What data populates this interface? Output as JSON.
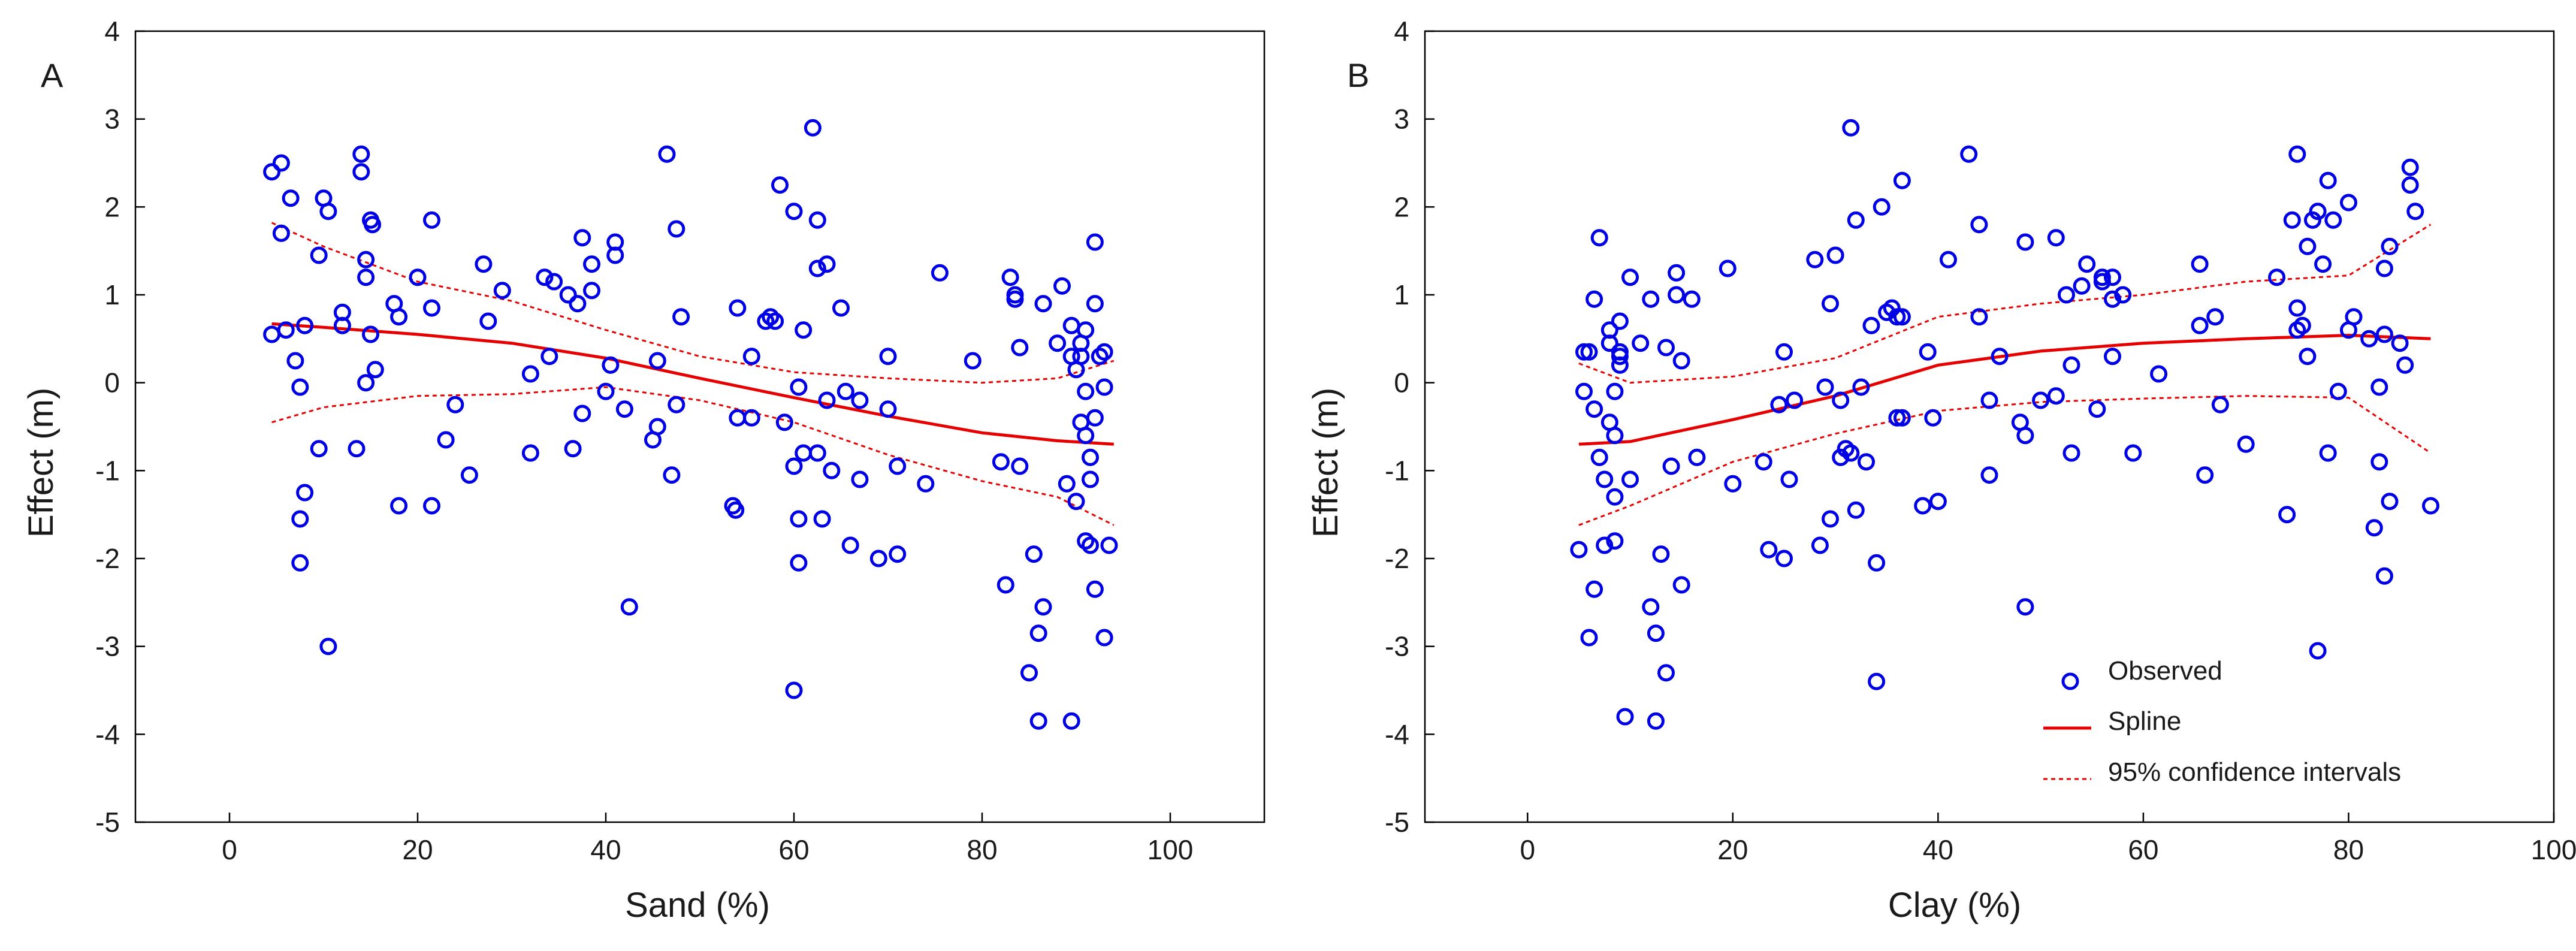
{
  "colors": {
    "points": "#0000e6",
    "spline": "#e60000",
    "ci": "#e60000",
    "axes": "#000000"
  },
  "legend": {
    "observed": "Observed",
    "spline": "Spline",
    "ci": "95% confidence intervals"
  },
  "chart_data": [
    {
      "panel": "A",
      "type": "scatter",
      "xlabel": "Sand (%)",
      "ylabel": "Effect (m)",
      "xlim": [
        -10,
        110
      ],
      "ylim": [
        -5,
        4
      ],
      "xticks": [
        0,
        20,
        40,
        60,
        80,
        100
      ],
      "yticks": [
        4,
        3,
        2,
        1,
        0,
        -1,
        -2,
        -3,
        -4,
        -5
      ],
      "points": [
        [
          4.5,
          2.4
        ],
        [
          5.5,
          2.5
        ],
        [
          6.5,
          2.1
        ],
        [
          5.5,
          1.7
        ],
        [
          4.5,
          0.55
        ],
        [
          6,
          0.6
        ],
        [
          7,
          0.25
        ],
        [
          7.5,
          -0.05
        ],
        [
          8,
          0.65
        ],
        [
          8,
          -1.25
        ],
        [
          7.5,
          -1.55
        ],
        [
          7.5,
          -2.05
        ],
        [
          9.5,
          1.45
        ],
        [
          10,
          2.1
        ],
        [
          10.5,
          1.95
        ],
        [
          9.5,
          -0.75
        ],
        [
          10.5,
          -3.0
        ],
        [
          12,
          0.8
        ],
        [
          12,
          0.65
        ],
        [
          13.5,
          -0.75
        ],
        [
          14,
          2.6
        ],
        [
          14,
          2.4
        ],
        [
          14.5,
          1.4
        ],
        [
          14.5,
          1.2
        ],
        [
          14.5,
          0.0
        ],
        [
          15,
          0.55
        ],
        [
          15,
          1.85
        ],
        [
          15.2,
          1.8
        ],
        [
          15.5,
          0.15
        ],
        [
          17.5,
          0.9
        ],
        [
          18,
          0.75
        ],
        [
          18,
          -1.4
        ],
        [
          20,
          1.2
        ],
        [
          21.5,
          1.85
        ],
        [
          21.5,
          0.85
        ],
        [
          21.5,
          -1.4
        ],
        [
          23,
          -0.65
        ],
        [
          24,
          -0.25
        ],
        [
          25.5,
          -1.05
        ],
        [
          27,
          1.35
        ],
        [
          27.5,
          0.7
        ],
        [
          29,
          1.05
        ],
        [
          32,
          0.1
        ],
        [
          32,
          -0.8
        ],
        [
          33.5,
          1.2
        ],
        [
          34,
          0.3
        ],
        [
          34.5,
          1.15
        ],
        [
          36,
          1.0
        ],
        [
          36.5,
          -0.75
        ],
        [
          37,
          0.9
        ],
        [
          37.5,
          -0.35
        ],
        [
          37.5,
          1.65
        ],
        [
          38.5,
          1.35
        ],
        [
          38.5,
          1.05
        ],
        [
          40,
          -0.1
        ],
        [
          40.5,
          0.2
        ],
        [
          41,
          1.6
        ],
        [
          41,
          1.45
        ],
        [
          42,
          -0.3
        ],
        [
          42.5,
          -2.55
        ],
        [
          45,
          -0.65
        ],
        [
          45.5,
          -0.5
        ],
        [
          45.5,
          0.25
        ],
        [
          46.5,
          2.6
        ],
        [
          47,
          -1.05
        ],
        [
          47.5,
          1.75
        ],
        [
          47.5,
          -0.25
        ],
        [
          48,
          0.75
        ],
        [
          53.5,
          -1.4
        ],
        [
          53.8,
          -1.45
        ],
        [
          54,
          0.85
        ],
        [
          54,
          -0.4
        ],
        [
          55.5,
          0.3
        ],
        [
          55.5,
          -0.4
        ],
        [
          57,
          0.7
        ],
        [
          57.5,
          0.75
        ],
        [
          58,
          0.7
        ],
        [
          58.5,
          2.25
        ],
        [
          59,
          -0.45
        ],
        [
          60,
          1.95
        ],
        [
          60,
          -0.95
        ],
        [
          60.5,
          -0.05
        ],
        [
          60.5,
          -1.55
        ],
        [
          60.5,
          -2.05
        ],
        [
          60,
          -3.5
        ],
        [
          61,
          0.6
        ],
        [
          61,
          -0.8
        ],
        [
          62,
          2.9
        ],
        [
          62.5,
          1.85
        ],
        [
          62.5,
          1.3
        ],
        [
          62.5,
          -0.8
        ],
        [
          63,
          -1.55
        ],
        [
          63.5,
          1.35
        ],
        [
          63.5,
          -0.2
        ],
        [
          64,
          -1.0
        ],
        [
          65,
          0.85
        ],
        [
          65.5,
          -0.1
        ],
        [
          66,
          -1.85
        ],
        [
          67,
          -0.2
        ],
        [
          67,
          -1.1
        ],
        [
          69,
          -2.0
        ],
        [
          70,
          0.3
        ],
        [
          70,
          -0.3
        ],
        [
          71,
          -0.95
        ],
        [
          71,
          -1.95
        ],
        [
          74,
          -1.15
        ],
        [
          75.5,
          1.25
        ],
        [
          79,
          0.25
        ],
        [
          82,
          -0.9
        ],
        [
          82.5,
          -2.3
        ],
        [
          83,
          1.2
        ],
        [
          83.5,
          0.95
        ],
        [
          83.5,
          1.0
        ],
        [
          84,
          0.4
        ],
        [
          84,
          -0.95
        ],
        [
          85,
          -3.3
        ],
        [
          85.5,
          -1.95
        ],
        [
          86,
          -2.85
        ],
        [
          86,
          -3.85
        ],
        [
          86.5,
          0.9
        ],
        [
          86.5,
          -2.55
        ],
        [
          88,
          0.45
        ],
        [
          88.5,
          1.1
        ],
        [
          89,
          -1.15
        ],
        [
          89.5,
          0.65
        ],
        [
          89.5,
          0.3
        ],
        [
          89.5,
          -3.85
        ],
        [
          90,
          0.15
        ],
        [
          90,
          -1.35
        ],
        [
          90.5,
          0.3
        ],
        [
          90.5,
          0.45
        ],
        [
          90.5,
          -0.45
        ],
        [
          91,
          -0.6
        ],
        [
          91,
          -1.8
        ],
        [
          91,
          0.6
        ],
        [
          91,
          -0.1
        ],
        [
          91.5,
          -0.85
        ],
        [
          91.5,
          -1.1
        ],
        [
          91.5,
          -1.85
        ],
        [
          92,
          1.6
        ],
        [
          92,
          0.9
        ],
        [
          92,
          -0.4
        ],
        [
          92,
          -2.35
        ],
        [
          92.5,
          0.3
        ],
        [
          93,
          0.35
        ],
        [
          93,
          -0.05
        ],
        [
          93,
          -2.9
        ],
        [
          93.5,
          -1.85
        ]
      ],
      "spline": [
        [
          4.5,
          0.67
        ],
        [
          10,
          0.63
        ],
        [
          20,
          0.55
        ],
        [
          30,
          0.45
        ],
        [
          40,
          0.28
        ],
        [
          50,
          0.05
        ],
        [
          60,
          -0.17
        ],
        [
          70,
          -0.38
        ],
        [
          80,
          -0.57
        ],
        [
          88,
          -0.66
        ],
        [
          94,
          -0.7
        ]
      ],
      "ci_upper": [
        [
          4.5,
          1.82
        ],
        [
          10,
          1.55
        ],
        [
          20,
          1.15
        ],
        [
          30,
          0.93
        ],
        [
          40,
          0.6
        ],
        [
          50,
          0.3
        ],
        [
          60,
          0.12
        ],
        [
          70,
          0.05
        ],
        [
          80,
          0.0
        ],
        [
          88,
          0.05
        ],
        [
          94,
          0.25
        ]
      ],
      "ci_lower": [
        [
          4.5,
          -0.45
        ],
        [
          10,
          -0.28
        ],
        [
          20,
          -0.15
        ],
        [
          30,
          -0.13
        ],
        [
          40,
          -0.05
        ],
        [
          50,
          -0.2
        ],
        [
          60,
          -0.45
        ],
        [
          70,
          -0.82
        ],
        [
          80,
          -1.12
        ],
        [
          88,
          -1.3
        ],
        [
          94,
          -1.62
        ]
      ]
    },
    {
      "panel": "B",
      "type": "scatter",
      "xlabel": "Clay (%)",
      "ylabel": "Effect (m)",
      "xlim": [
        -10,
        100
      ],
      "ylim": [
        -5,
        4
      ],
      "xticks": [
        0,
        20,
        40,
        60,
        80,
        100
      ],
      "yticks": [
        4,
        3,
        2,
        1,
        0,
        -1,
        -2,
        -3,
        -4,
        -5
      ],
      "points": [
        [
          5,
          -1.9
        ],
        [
          5.5,
          0.35
        ],
        [
          5.5,
          -0.1
        ],
        [
          6,
          -2.9
        ],
        [
          6,
          0.35
        ],
        [
          6.5,
          0.95
        ],
        [
          6.5,
          -2.35
        ],
        [
          6.5,
          -0.3
        ],
        [
          7,
          1.65
        ],
        [
          7,
          -0.85
        ],
        [
          7.5,
          -1.85
        ],
        [
          7.5,
          -1.1
        ],
        [
          8,
          0.6
        ],
        [
          8,
          -0.45
        ],
        [
          8,
          0.45
        ],
        [
          8.5,
          -0.1
        ],
        [
          8.5,
          -0.6
        ],
        [
          8.5,
          -1.8
        ],
        [
          8.5,
          -1.3
        ],
        [
          9,
          0.35
        ],
        [
          9,
          0.3
        ],
        [
          9,
          0.2
        ],
        [
          9,
          0.7
        ],
        [
          9.5,
          -3.8
        ],
        [
          10,
          1.2
        ],
        [
          10,
          -1.1
        ],
        [
          11,
          0.45
        ],
        [
          12,
          -2.55
        ],
        [
          12,
          0.95
        ],
        [
          12.5,
          -2.85
        ],
        [
          12.5,
          -3.85
        ],
        [
          13,
          -1.95
        ],
        [
          13.5,
          -3.3
        ],
        [
          13.5,
          0.4
        ],
        [
          14,
          -0.95
        ],
        [
          14.5,
          1.0
        ],
        [
          14.5,
          1.25
        ],
        [
          15,
          0.25
        ],
        [
          15,
          -2.3
        ],
        [
          16,
          0.95
        ],
        [
          16.5,
          -0.85
        ],
        [
          19.5,
          1.3
        ],
        [
          20,
          -1.15
        ],
        [
          23,
          -0.9
        ],
        [
          23.5,
          -1.9
        ],
        [
          24.5,
          -0.25
        ],
        [
          25,
          0.35
        ],
        [
          25,
          -2.0
        ],
        [
          25.5,
          -1.1
        ],
        [
          26,
          -0.2
        ],
        [
          28,
          1.4
        ],
        [
          28.5,
          -1.85
        ],
        [
          29,
          -0.05
        ],
        [
          29.5,
          0.9
        ],
        [
          29.5,
          -1.55
        ],
        [
          30,
          1.45
        ],
        [
          30.5,
          -0.2
        ],
        [
          30.5,
          -0.85
        ],
        [
          31,
          -0.75
        ],
        [
          31.5,
          2.9
        ],
        [
          31.5,
          -0.8
        ],
        [
          32,
          1.85
        ],
        [
          32,
          -1.45
        ],
        [
          32.5,
          -0.05
        ],
        [
          33,
          -0.9
        ],
        [
          33.5,
          0.65
        ],
        [
          34,
          -2.05
        ],
        [
          34,
          -3.4
        ],
        [
          34.5,
          2.0
        ],
        [
          35,
          0.8
        ],
        [
          35.5,
          0.85
        ],
        [
          36,
          0.75
        ],
        [
          36,
          -0.4
        ],
        [
          36.5,
          2.3
        ],
        [
          36.5,
          0.75
        ],
        [
          36.5,
          -0.4
        ],
        [
          38.5,
          -1.4
        ],
        [
          39,
          0.35
        ],
        [
          39.5,
          -0.4
        ],
        [
          40,
          -1.35
        ],
        [
          41,
          1.4
        ],
        [
          43,
          2.6
        ],
        [
          44,
          0.75
        ],
        [
          44,
          1.8
        ],
        [
          45,
          -0.2
        ],
        [
          45,
          -1.05
        ],
        [
          46,
          0.3
        ],
        [
          48,
          -0.45
        ],
        [
          48.5,
          -0.6
        ],
        [
          48.5,
          1.6
        ],
        [
          48.5,
          -2.55
        ],
        [
          50,
          -0.2
        ],
        [
          51.5,
          1.65
        ],
        [
          51.5,
          -0.15
        ],
        [
          52.5,
          1.0
        ],
        [
          53,
          0.2
        ],
        [
          53,
          -0.8
        ],
        [
          54,
          1.1
        ],
        [
          54.5,
          1.35
        ],
        [
          55.5,
          -0.3
        ],
        [
          56,
          1.2
        ],
        [
          56,
          1.15
        ],
        [
          57,
          1.2
        ],
        [
          57,
          0.3
        ],
        [
          57,
          0.95
        ],
        [
          58,
          1.0
        ],
        [
          59,
          -0.8
        ],
        [
          61.5,
          0.1
        ],
        [
          65.5,
          1.35
        ],
        [
          65.5,
          0.65
        ],
        [
          66,
          -1.05
        ],
        [
          67,
          0.75
        ],
        [
          67.5,
          -0.25
        ],
        [
          70,
          -0.7
        ],
        [
          73,
          1.2
        ],
        [
          74,
          -1.5
        ],
        [
          74.5,
          1.85
        ],
        [
          75,
          2.6
        ],
        [
          75,
          0.85
        ],
        [
          75,
          0.6
        ],
        [
          75.5,
          0.65
        ],
        [
          76,
          0.3
        ],
        [
          76,
          1.55
        ],
        [
          76.5,
          1.85
        ],
        [
          77,
          -3.05
        ],
        [
          77,
          1.95
        ],
        [
          77.5,
          1.35
        ],
        [
          78,
          -0.8
        ],
        [
          78,
          2.3
        ],
        [
          78.5,
          1.85
        ],
        [
          79,
          -0.1
        ],
        [
          80,
          2.05
        ],
        [
          80,
          0.6
        ],
        [
          80.5,
          0.75
        ],
        [
          82,
          0.5
        ],
        [
          82.5,
          -1.65
        ],
        [
          83,
          -0.05
        ],
        [
          83,
          -0.9
        ],
        [
          83.5,
          -2.2
        ],
        [
          83.5,
          1.3
        ],
        [
          83.5,
          0.55
        ],
        [
          84,
          1.55
        ],
        [
          84,
          -1.35
        ],
        [
          85,
          0.45
        ],
        [
          85.5,
          0.2
        ],
        [
          86,
          2.45
        ],
        [
          86,
          2.25
        ],
        [
          86.5,
          1.95
        ],
        [
          88,
          -1.4
        ]
      ],
      "spline": [
        [
          5,
          -0.7
        ],
        [
          10,
          -0.67
        ],
        [
          20,
          -0.42
        ],
        [
          30,
          -0.15
        ],
        [
          40,
          0.2
        ],
        [
          50,
          0.36
        ],
        [
          60,
          0.45
        ],
        [
          70,
          0.5
        ],
        [
          80,
          0.54
        ],
        [
          88,
          0.5
        ]
      ],
      "ci_upper": [
        [
          5,
          0.22
        ],
        [
          10,
          0.0
        ],
        [
          20,
          0.07
        ],
        [
          30,
          0.28
        ],
        [
          40,
          0.75
        ],
        [
          50,
          0.9
        ],
        [
          60,
          1.0
        ],
        [
          70,
          1.15
        ],
        [
          80,
          1.22
        ],
        [
          88,
          1.8
        ]
      ],
      "ci_lower": [
        [
          5,
          -1.62
        ],
        [
          10,
          -1.4
        ],
        [
          20,
          -0.9
        ],
        [
          30,
          -0.58
        ],
        [
          40,
          -0.32
        ],
        [
          50,
          -0.22
        ],
        [
          60,
          -0.18
        ],
        [
          70,
          -0.15
        ],
        [
          80,
          -0.17
        ],
        [
          88,
          -0.8
        ]
      ]
    }
  ]
}
